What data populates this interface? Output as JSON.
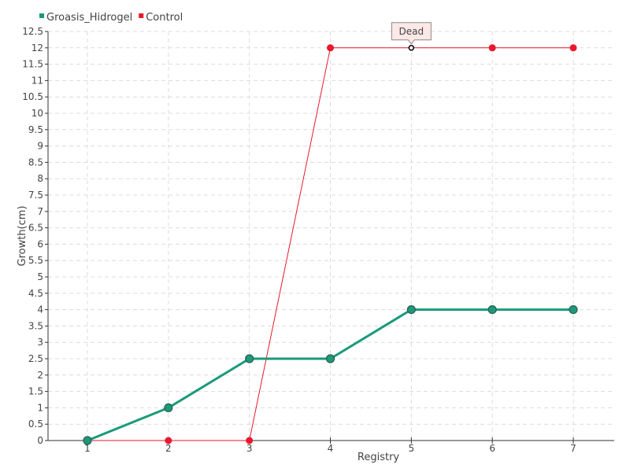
{
  "chart_data": {
    "type": "line",
    "xlabel": "Registry",
    "ylabel": "Growth(cm)",
    "x": [
      1,
      2,
      3,
      4,
      5,
      6,
      7
    ],
    "ylim": [
      0,
      12.5
    ],
    "ytick_step": 0.5,
    "grid": true,
    "legend_position": "top-left",
    "series": [
      {
        "name": "Groasis_Hidrogel",
        "color": "#1a9a7a",
        "values": [
          0,
          1,
          2.5,
          2.5,
          4,
          4,
          4
        ]
      },
      {
        "name": "Control",
        "color": "#e8192c",
        "values": [
          0,
          0,
          0,
          12,
          12,
          12,
          12
        ]
      }
    ],
    "annotations": [
      {
        "series": 1,
        "x": 5,
        "text": "Dead"
      }
    ]
  }
}
